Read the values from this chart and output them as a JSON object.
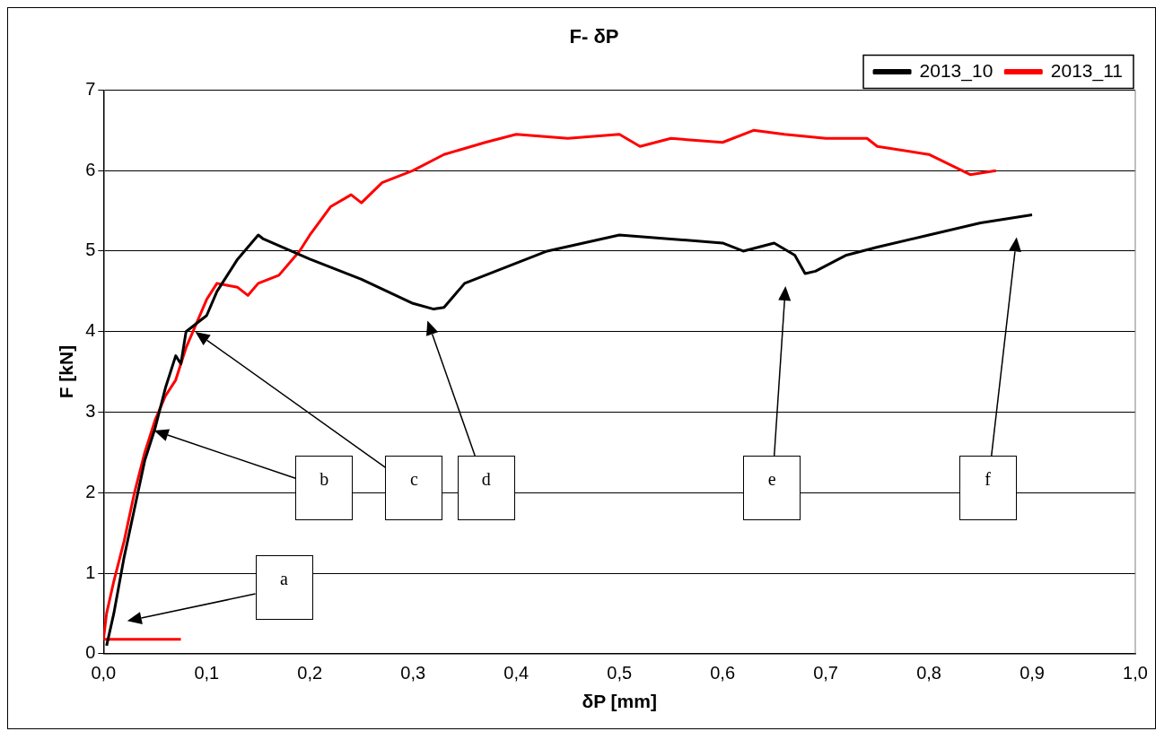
{
  "chart_data": {
    "type": "line",
    "title": "F- δP",
    "xlabel": "δP [mm]",
    "ylabel": "F [kN]",
    "xlim": [
      0,
      1
    ],
    "xticks": [
      {
        "value": 0,
        "label": "0,0"
      },
      {
        "value": 0.1,
        "label": "0,1"
      },
      {
        "value": 0.2,
        "label": "0,2"
      },
      {
        "value": 0.3,
        "label": "0,3"
      },
      {
        "value": 0.4,
        "label": "0,4"
      },
      {
        "value": 0.5,
        "label": "0,5"
      },
      {
        "value": 0.6,
        "label": "0,6"
      },
      {
        "value": 0.7,
        "label": "0,7"
      },
      {
        "value": 0.8,
        "label": "0,8"
      },
      {
        "value": 0.9,
        "label": "0,9"
      },
      {
        "value": 1,
        "label": "1,0"
      }
    ],
    "ylim": [
      0,
      7
    ],
    "yticks": [
      0,
      1,
      2,
      3,
      4,
      5,
      6,
      7
    ],
    "grid": "y",
    "legend": "top right",
    "line_style": "solid",
    "marker": "none",
    "series": [
      {
        "name": "2013_10",
        "color": "#000000",
        "x": [
          0.003,
          0.01,
          0.02,
          0.03,
          0.04,
          0.05,
          0.06,
          0.07,
          0.075,
          0.08,
          0.09,
          0.1,
          0.11,
          0.12,
          0.13,
          0.14,
          0.15,
          0.155,
          0.2,
          0.25,
          0.3,
          0.32,
          0.33,
          0.35,
          0.4,
          0.43,
          0.5,
          0.55,
          0.6,
          0.62,
          0.65,
          0.67,
          0.68,
          0.69,
          0.72,
          0.75,
          0.8,
          0.85,
          0.9
        ],
        "values": [
          0.1,
          0.5,
          1.2,
          1.8,
          2.4,
          2.8,
          3.3,
          3.7,
          3.6,
          4.0,
          4.1,
          4.2,
          4.5,
          4.7,
          4.9,
          5.05,
          5.2,
          5.15,
          4.9,
          4.65,
          4.35,
          4.28,
          4.3,
          4.6,
          4.85,
          5.0,
          5.2,
          5.15,
          5.1,
          5.0,
          5.1,
          4.95,
          4.72,
          4.75,
          4.95,
          5.05,
          5.2,
          5.35,
          5.45
        ]
      },
      {
        "name": "2013_11",
        "color": "#ff0000",
        "x": [
          0.075,
          0,
          0.003,
          0.01,
          0.02,
          0.03,
          0.04,
          0.05,
          0.06,
          0.07,
          0.08,
          0.09,
          0.1,
          0.11,
          0.13,
          0.14,
          0.15,
          0.17,
          0.19,
          0.2,
          0.22,
          0.24,
          0.25,
          0.27,
          0.3,
          0.33,
          0.37,
          0.4,
          0.45,
          0.5,
          0.52,
          0.55,
          0.6,
          0.63,
          0.66,
          0.7,
          0.74,
          0.75,
          0.8,
          0.84,
          0.865
        ],
        "values": [
          0.18,
          0.18,
          0.5,
          0.9,
          1.4,
          2.0,
          2.5,
          2.9,
          3.2,
          3.4,
          3.8,
          4.1,
          4.4,
          4.6,
          4.55,
          4.45,
          4.6,
          4.7,
          5.0,
          5.2,
          5.55,
          5.7,
          5.6,
          5.85,
          6.0,
          6.2,
          6.35,
          6.45,
          6.4,
          6.45,
          6.3,
          6.4,
          6.35,
          6.5,
          6.45,
          6.4,
          6.4,
          6.3,
          6.2,
          5.95,
          6.0
        ]
      }
    ],
    "annotations": [
      "a",
      "b",
      "c",
      "d",
      "e",
      "f"
    ]
  }
}
